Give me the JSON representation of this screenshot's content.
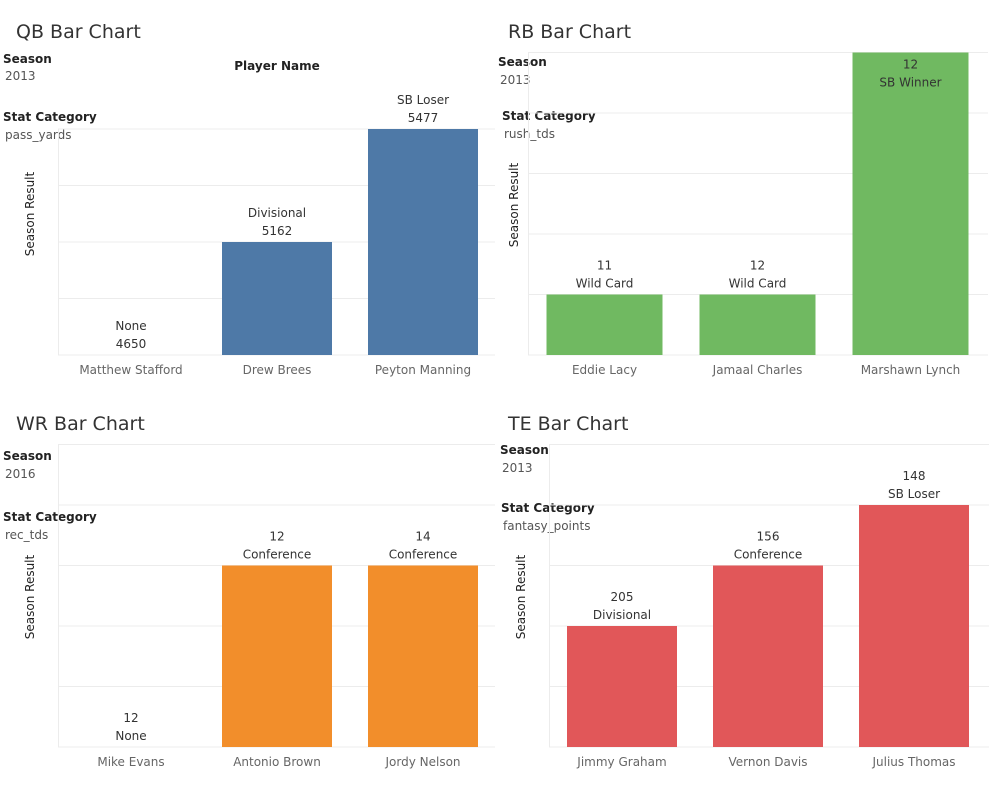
{
  "colors": {
    "qb": "#4e79a7",
    "rb": "#70b961",
    "wr": "#f28e2b",
    "te": "#e15759",
    "grid": "#ececec"
  },
  "panels": [
    {
      "title": "QB Bar Chart",
      "header": "Player Name",
      "season_label": "Season",
      "season": "2013",
      "stat_label": "Stat Category",
      "stat": "pass_yards",
      "ylabel": "Season Result"
    },
    {
      "title": "RB Bar Chart",
      "season_label": "Season",
      "season": "2013",
      "stat_label": "Stat Category",
      "stat": "rush_tds",
      "ylabel": "Season Result"
    },
    {
      "title": "WR Bar Chart",
      "season_label": "Season",
      "season": "2016",
      "stat_label": "Stat Category",
      "stat": "rec_tds",
      "ylabel": "Season Result"
    },
    {
      "title": "TE Bar Chart",
      "season_label": "Season",
      "season": "2013",
      "stat_label": "Stat Category",
      "stat": "fantasy_points",
      "ylabel": "Season Result"
    }
  ],
  "chart_data": [
    {
      "type": "bar",
      "title": "QB Bar Chart",
      "ylabel": "Season Result",
      "categories": [
        "Matthew Stafford",
        "Drew Brees",
        "Peyton Manning"
      ],
      "series": [
        {
          "values": [
            0,
            2,
            4
          ]
        }
      ],
      "labels_top": [
        "None",
        "Divisional",
        "SB Loser"
      ],
      "labels_bottom": [
        "4650",
        "5162",
        "5477"
      ],
      "ylim": [
        0,
        4
      ]
    },
    {
      "type": "bar",
      "title": "RB Bar Chart",
      "ylabel": "Season Result",
      "categories": [
        "Eddie Lacy",
        "Jamaal Charles",
        "Marshawn Lynch"
      ],
      "series": [
        {
          "values": [
            1,
            1,
            5
          ]
        }
      ],
      "labels_top": [
        "11",
        "12",
        "12"
      ],
      "labels_bottom": [
        "Wild Card",
        "Wild Card",
        "SB Winner"
      ],
      "ylim": [
        0,
        5
      ]
    },
    {
      "type": "bar",
      "title": "WR Bar Chart",
      "ylabel": "Season Result",
      "categories": [
        "Mike Evans",
        "Antonio Brown",
        "Jordy Nelson"
      ],
      "series": [
        {
          "values": [
            0,
            3,
            3
          ]
        }
      ],
      "labels_top": [
        "12",
        "12",
        "14"
      ],
      "labels_bottom": [
        "None",
        "Conference",
        "Conference"
      ],
      "ylim": [
        0,
        5
      ]
    },
    {
      "type": "bar",
      "title": "TE Bar Chart",
      "ylabel": "Season Result",
      "categories": [
        "Jimmy Graham",
        "Vernon Davis",
        "Julius Thomas"
      ],
      "series": [
        {
          "values": [
            2,
            3,
            4
          ]
        }
      ],
      "labels_top": [
        "205",
        "156",
        "148"
      ],
      "labels_bottom": [
        "Divisional",
        "Conference",
        "SB Loser"
      ],
      "ylim": [
        0,
        5
      ]
    }
  ]
}
